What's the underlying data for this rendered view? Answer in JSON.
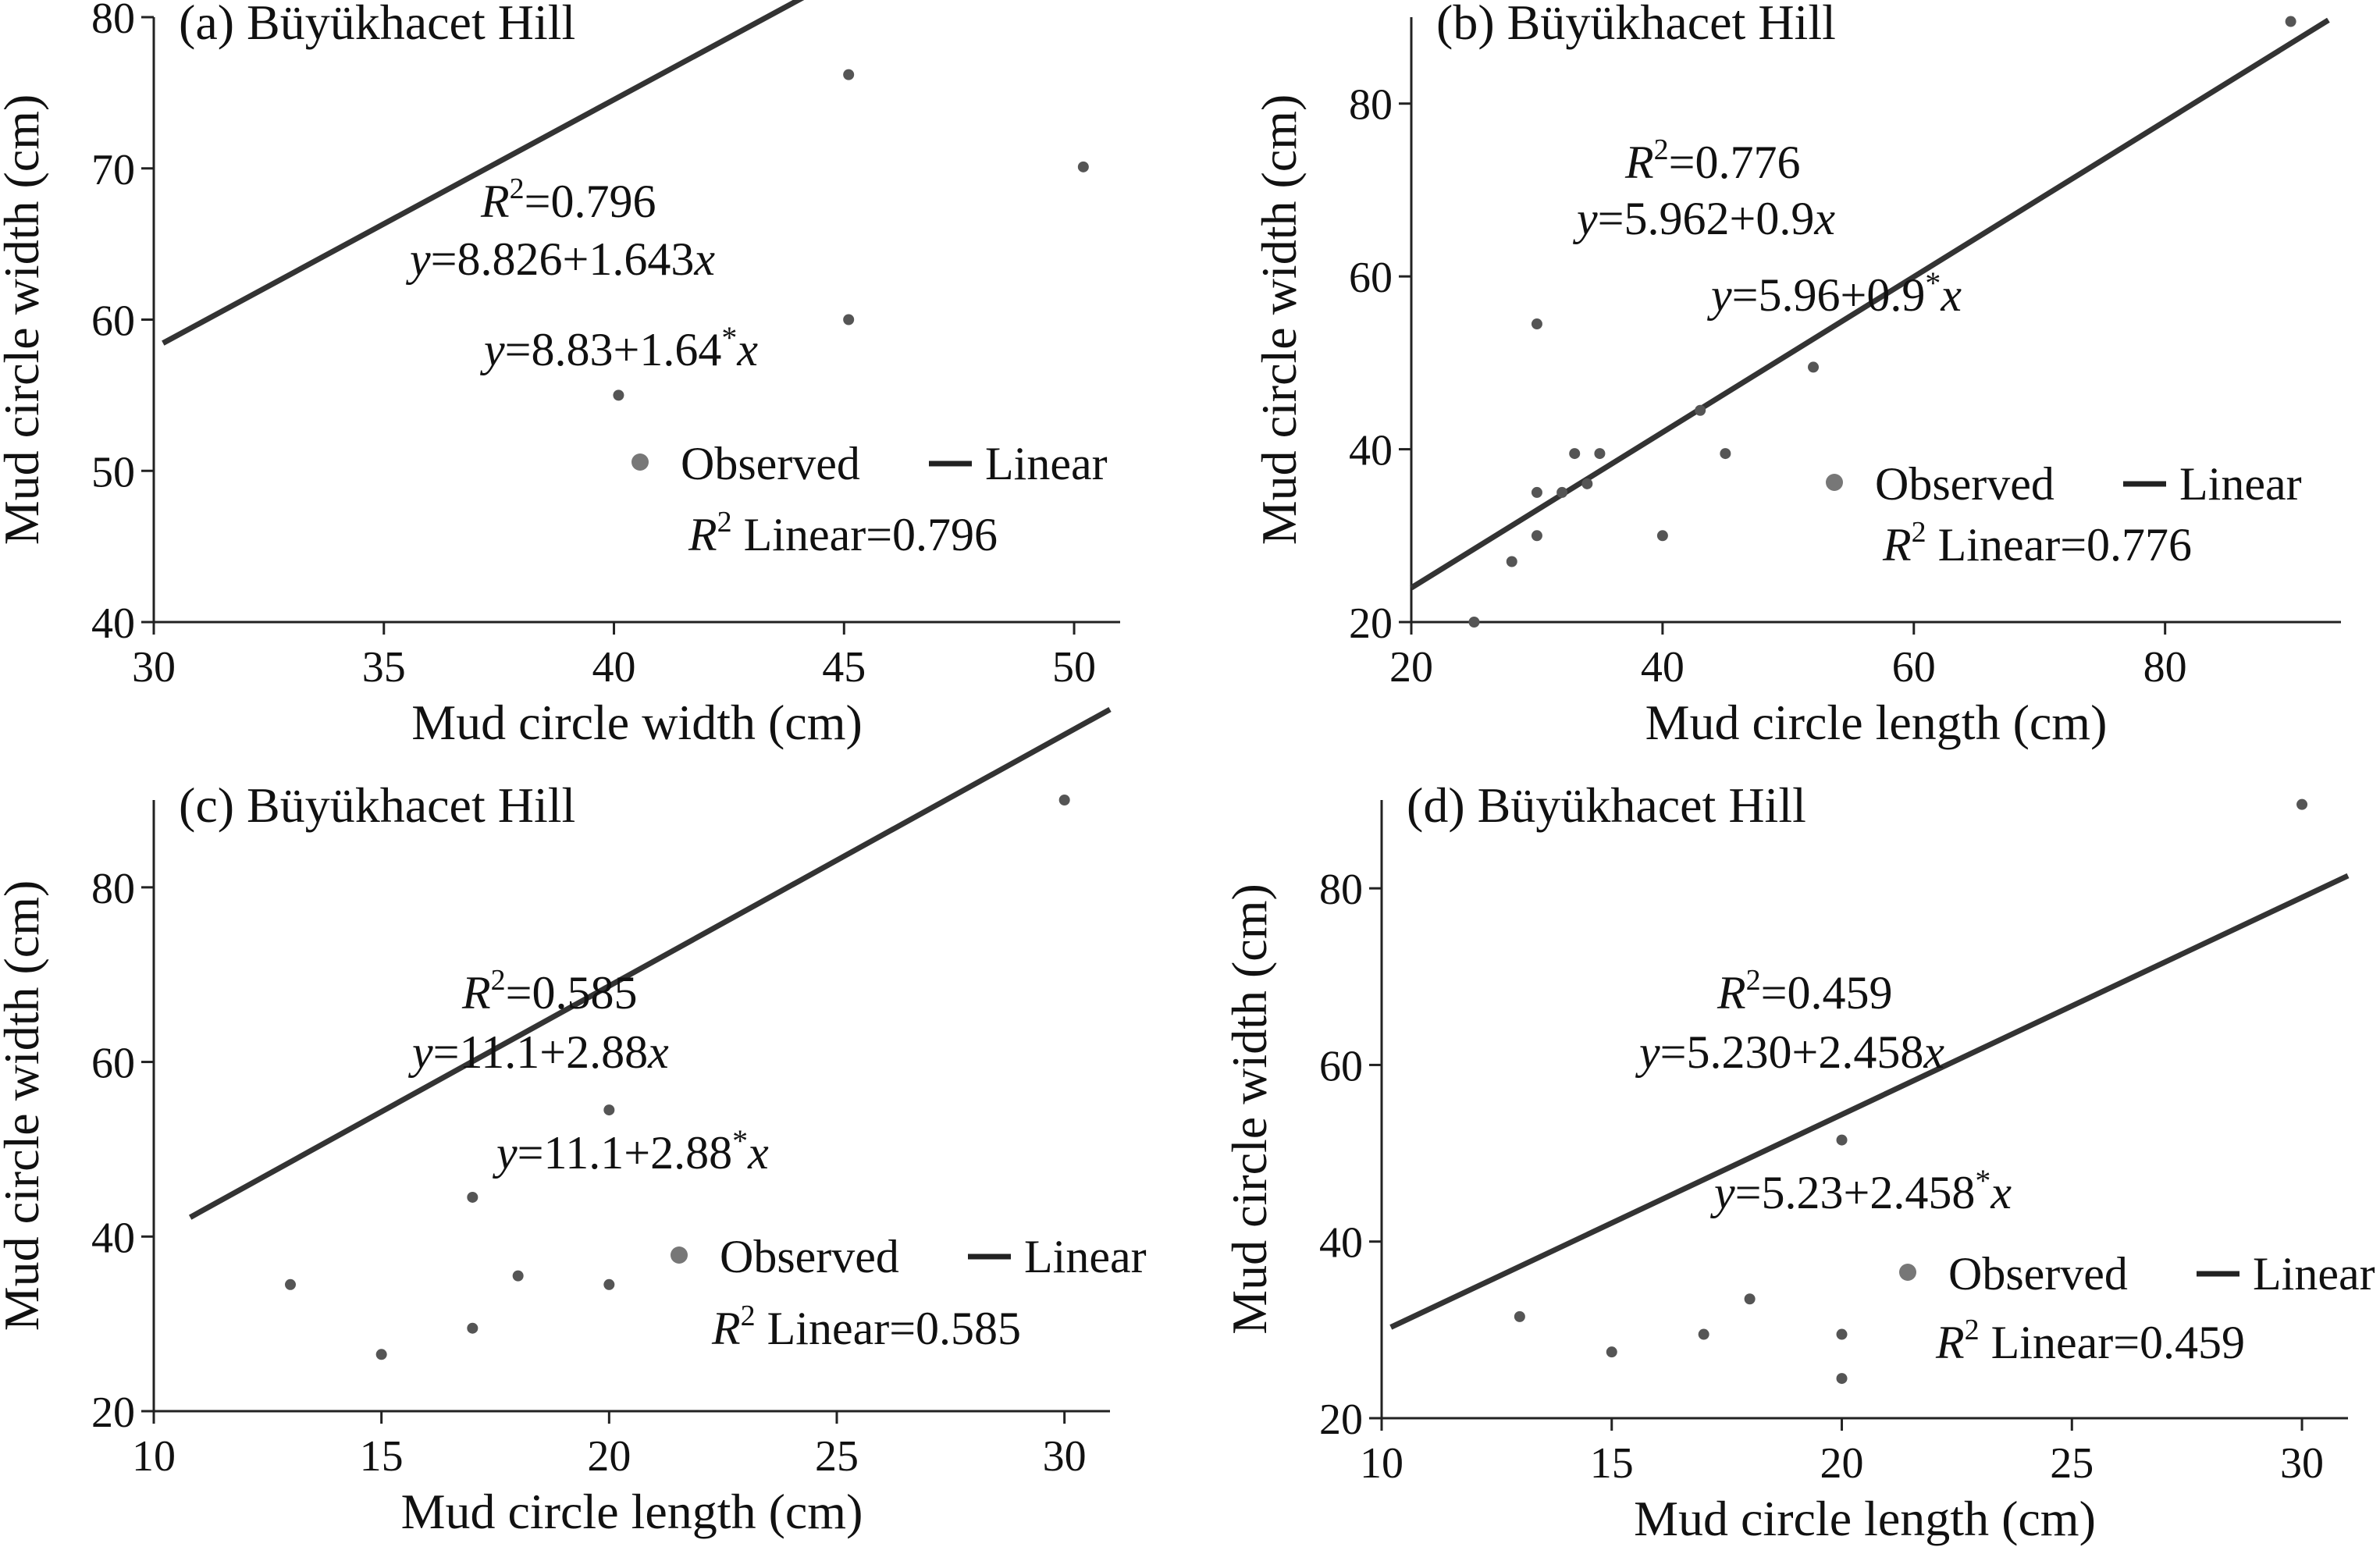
{
  "chart_data": [
    {
      "type": "scatter",
      "title": "(a) Büyükhacet Hill",
      "xlabel": "Mud circle width (cm)",
      "ylabel": "Mud circle width (cm)",
      "xlim": [
        30,
        51
      ],
      "ylim": [
        40,
        80
      ],
      "xticks": [
        "30",
        "35",
        "40",
        "45",
        "50"
      ],
      "yticks": [
        "40",
        "50",
        "60",
        "70",
        "80"
      ],
      "points": [
        {
          "x": 40.1,
          "y": 55.0
        },
        {
          "x": 45.1,
          "y": 76.2
        },
        {
          "x": 45.1,
          "y": 60.0
        },
        {
          "x": 50.2,
          "y": 70.1
        }
      ],
      "fit": {
        "intercept": 8.826,
        "slope": 1.643,
        "x_range": [
          30.2,
          51
        ]
      },
      "annotations": {
        "r2": "=0.796",
        "eq_rhs": "=8.826+1.643",
        "eq2_a": "=8.83+1.64",
        "eq2_star": "*",
        "legend_observed": "Observed",
        "legend_linear": "Linear",
        "r2_linear": " Linear=0.796"
      }
    },
    {
      "type": "scatter",
      "title": "(b) Büyükhacet Hill",
      "xlabel": "Mud circle length (cm)",
      "ylabel": "Mud circle width (cm)",
      "xlim": [
        20,
        94
      ],
      "ylim": [
        20,
        90
      ],
      "xticks": [
        "20",
        "40",
        "60",
        "80"
      ],
      "yticks": [
        "20",
        "40",
        "60",
        "80"
      ],
      "points": [
        {
          "x": 25,
          "y": 20
        },
        {
          "x": 28,
          "y": 27
        },
        {
          "x": 30,
          "y": 30
        },
        {
          "x": 30,
          "y": 35
        },
        {
          "x": 30,
          "y": 54.5
        },
        {
          "x": 32,
          "y": 35
        },
        {
          "x": 33,
          "y": 39.5
        },
        {
          "x": 34,
          "y": 36
        },
        {
          "x": 35,
          "y": 39.5
        },
        {
          "x": 40,
          "y": 30
        },
        {
          "x": 43,
          "y": 44.5
        },
        {
          "x": 45,
          "y": 39.5
        },
        {
          "x": 52,
          "y": 49.5
        },
        {
          "x": 90,
          "y": 89.5
        }
      ],
      "fit": {
        "intercept": 5.962,
        "slope": 0.9,
        "x_range": [
          20,
          93
        ]
      },
      "annotations": {
        "r2": "=0.776",
        "eq_rhs": "=5.962+0.9",
        "eq2_a": "=5.96+0.9",
        "eq2_star": "*",
        "legend_observed": "Observed",
        "legend_linear": "Linear",
        "r2_linear": " Linear=0.776"
      }
    },
    {
      "type": "scatter",
      "title": "(c) Büyükhacet Hill",
      "xlabel": "Mud circle length (cm)",
      "ylabel": "Mud circle width (cm)",
      "xlim": [
        10,
        31
      ],
      "ylim": [
        20,
        90
      ],
      "xticks": [
        "10",
        "15",
        "20",
        "25",
        "30"
      ],
      "yticks": [
        "20",
        "40",
        "60",
        "80"
      ],
      "points": [
        {
          "x": 13,
          "y": 34.5
        },
        {
          "x": 15,
          "y": 26.5
        },
        {
          "x": 17,
          "y": 44.5
        },
        {
          "x": 17,
          "y": 29.5
        },
        {
          "x": 18,
          "y": 35.5
        },
        {
          "x": 20,
          "y": 54.5
        },
        {
          "x": 20,
          "y": 34.5
        },
        {
          "x": 30,
          "y": 90
        }
      ],
      "fit": {
        "intercept": 11.1,
        "slope": 2.88,
        "x_range": [
          10.8,
          31
        ]
      },
      "annotations": {
        "r2": "=0.585",
        "eq_rhs": "=11.1+2.88",
        "eq2_a": "=11.1+2.88",
        "eq2_star": "*",
        "legend_observed": "Observed",
        "legend_linear": "Linear",
        "r2_linear": " Linear=0.585"
      }
    },
    {
      "type": "scatter",
      "title": "(d) Büyükhacet Hill",
      "xlabel": "Mud circle length (cm)",
      "ylabel": "Mud circle width (cm)",
      "xlim": [
        10,
        31
      ],
      "ylim": [
        20,
        90
      ],
      "xticks": [
        "10",
        "15",
        "20",
        "25",
        "30"
      ],
      "yticks": [
        "20",
        "40",
        "60",
        "80"
      ],
      "points": [
        {
          "x": 13,
          "y": 31.5
        },
        {
          "x": 15,
          "y": 27.5
        },
        {
          "x": 17,
          "y": 29.5
        },
        {
          "x": 18,
          "y": 33.5
        },
        {
          "x": 20,
          "y": 51.5
        },
        {
          "x": 20,
          "y": 29.5
        },
        {
          "x": 20,
          "y": 24.5
        },
        {
          "x": 30,
          "y": 89.5
        }
      ],
      "fit": {
        "intercept": 5.23,
        "slope": 2.458,
        "x_range": [
          10.2,
          31
        ]
      },
      "annotations": {
        "r2": "=0.459",
        "eq_rhs": "=5.230+2.458",
        "eq2_a": "=5.23+2.458",
        "eq2_star": "*",
        "legend_observed": "Observed",
        "legend_linear": "Linear",
        "r2_linear": " Linear=0.459"
      }
    }
  ]
}
